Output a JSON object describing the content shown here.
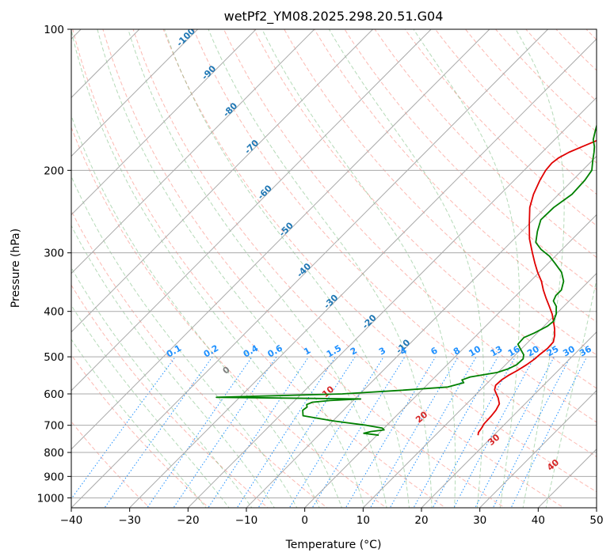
{
  "chart_data": {
    "type": "line",
    "subtype": "skew-t log-p",
    "title": "wetPf2_YM08.2025.298.20.51.G04",
    "xlabel": "Temperature (°C)",
    "ylabel": "Pressure (hPa)",
    "xlim": [
      -40,
      50
    ],
    "ylim": [
      1050,
      100
    ],
    "y_scale": "log",
    "x_ticks": [
      -40,
      -30,
      -20,
      -10,
      0,
      10,
      20,
      30,
      40,
      50
    ],
    "y_ticks": [
      100,
      200,
      300,
      400,
      500,
      600,
      700,
      800,
      900,
      1000
    ],
    "grid": true,
    "colors": {
      "temperature": "#e00000",
      "dewpoint": "#008000",
      "isotherm": "#1f77b4",
      "mixing_ratio": "#1e90ff",
      "moist_adiabat_label": "#d62728",
      "dry_adiabat": "#fa8072",
      "moist_adiabat": "#5aae61",
      "grid": "#aaaaaa"
    },
    "isotherm_labels": [
      "-100",
      "-90",
      "-80",
      "-70",
      "-60",
      "-50",
      "-40",
      "-30",
      "-20",
      "-10"
    ],
    "isotherm_label_values": [
      -100,
      -90,
      -80,
      -70,
      -60,
      -50,
      -40,
      -30,
      -20,
      -10
    ],
    "mixing_ratio_labels": [
      "0.1",
      "0.2",
      "0.4",
      "0.6",
      "1",
      "1.5",
      "2",
      "3",
      "4",
      "6",
      "8",
      "10",
      "13",
      "16",
      "20",
      "25",
      "30",
      "36"
    ],
    "mixing_ratio_values": [
      0.1,
      0.2,
      0.4,
      0.6,
      1,
      1.5,
      2,
      3,
      4,
      6,
      8,
      10,
      13,
      16,
      20,
      25,
      30,
      36
    ],
    "wetbulb_labels": [
      "0",
      "10",
      "20",
      "30",
      "40"
    ],
    "wetbulb_values": [
      0,
      10,
      20,
      30,
      40
    ],
    "series": [
      {
        "p": [
          735,
          725,
          710,
          695,
          670,
          650,
          630,
          612,
          600,
          588,
          575,
          560,
          548,
          535,
          520,
          505,
          495,
          480,
          465,
          450,
          435,
          420,
          405,
          390,
          375,
          360,
          345,
          330,
          315,
          300,
          280,
          260,
          240,
          225,
          210,
          200,
          193,
          188,
          183,
          178,
          172,
          165,
          158,
          150,
          143,
          137,
          130,
          125,
          120,
          115,
          110,
          105,
          100
        ],
        "t": [
          17.3,
          16.9,
          16.7,
          16.4,
          16.3,
          16.1,
          15.6,
          14.4,
          13.4,
          12.4,
          11.8,
          11.9,
          12.3,
          13.0,
          13.6,
          14.0,
          14.1,
          14.4,
          14.3,
          13.4,
          12.2,
          10.8,
          9.3,
          7.5,
          5.6,
          3.7,
          1.9,
          -0.3,
          -2.4,
          -4.5,
          -7.4,
          -10.0,
          -12.7,
          -14.3,
          -15.6,
          -16.3,
          -16.5,
          -16.2,
          -15.4,
          -14.1,
          -12.4,
          -10.6,
          -9.9,
          -9.7,
          -9.3,
          -8.7,
          -7.8,
          -6.8,
          -5.9,
          -5.1,
          -4.6,
          -4.1,
          -3.8
        ]
      },
      {
        "p": [
          735,
          728,
          722,
          716,
          710,
          700,
          685,
          668,
          650,
          640,
          632,
          625,
          620,
          615,
          610,
          600,
          590,
          580,
          568,
          560,
          552,
          540,
          530,
          520,
          505,
          495,
          485,
          470,
          455,
          445,
          430,
          420,
          405,
          390,
          380,
          370,
          360,
          345,
          330,
          315,
          305,
          295,
          285,
          270,
          255,
          240,
          225,
          210,
          200,
          190,
          183,
          178,
          172,
          165,
          158,
          150,
          143,
          135,
          128,
          120,
          113,
          107,
          100
        ],
        "td": [
          0.3,
          -2.6,
          -1.7,
          0.3,
          -0.3,
          -3.5,
          -10.0,
          -16.0,
          -17.0,
          -16.8,
          -17.3,
          -16.7,
          -14.0,
          -9.0,
          -34.0,
          -13.0,
          -4.0,
          3.9,
          5.9,
          5.1,
          6.0,
          9.9,
          11.2,
          11.9,
          12.0,
          11.4,
          10.3,
          8.6,
          8.5,
          9.5,
          10.6,
          10.8,
          10.0,
          8.7,
          7.3,
          6.8,
          6.8,
          5.7,
          3.8,
          1.0,
          -1.0,
          -3.6,
          -5.7,
          -7.3,
          -8.7,
          -8.6,
          -7.7,
          -7.9,
          -8.4,
          -10.0,
          -11.1,
          -12.0,
          -13.4,
          -14.5,
          -15.6,
          -14.3,
          -12.1,
          -10.2,
          -8.1,
          -5.3,
          -2.6,
          -0.2,
          2.0
        ]
      }
    ]
  }
}
